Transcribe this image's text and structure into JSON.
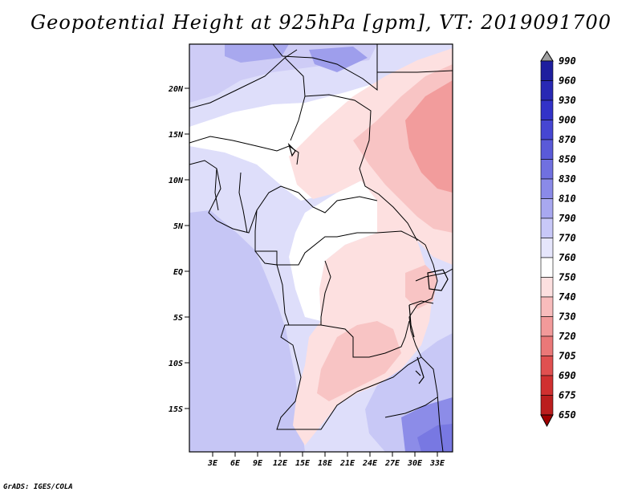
{
  "title": "Geopotential Height at 925hPa [gpm], VT: 2019091700",
  "footer": "GrADS: IGES/COLA",
  "map": {
    "lat_ticks": [
      "20N",
      "15N",
      "10N",
      "5N",
      "EQ",
      "5S",
      "10S",
      "15S"
    ],
    "lon_ticks": [
      "3E",
      "6E",
      "9E",
      "12E",
      "15E",
      "18E",
      "21E",
      "24E",
      "27E",
      "30E",
      "33E"
    ]
  },
  "colorbar": {
    "levels": [
      "990",
      "960",
      "930",
      "900",
      "870",
      "850",
      "830",
      "810",
      "790",
      "770",
      "760",
      "750",
      "740",
      "730",
      "720",
      "705",
      "690",
      "675",
      "650"
    ],
    "colors": [
      "#a0a0a0",
      "#1e1e9e",
      "#2828b4",
      "#3232c8",
      "#4646d2",
      "#5a5ad8",
      "#7070e0",
      "#8a8ae8",
      "#a8a8f0",
      "#c8c8f8",
      "#e6e6fc",
      "#ffffff",
      "#fde0e0",
      "#f8bcbc",
      "#f29a9a",
      "#ea7878",
      "#e05050",
      "#d03030",
      "#bb1e1e",
      "#a00000"
    ]
  }
}
